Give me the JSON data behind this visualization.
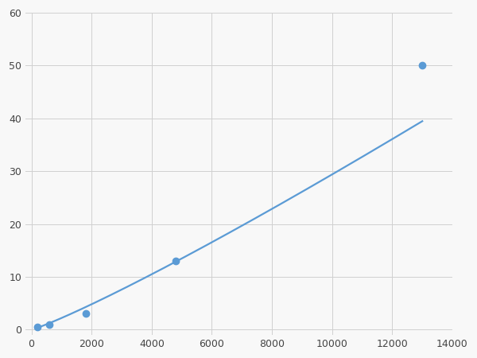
{
  "x_data": [
    200,
    600,
    1800,
    4800,
    13000
  ],
  "y_data": [
    0.5,
    1.0,
    3.0,
    13.0,
    50.0
  ],
  "line_color": "#5b9bd5",
  "marker_color": "#5b9bd5",
  "marker_size": 6,
  "line_width": 1.6,
  "xlim": [
    -200,
    14000
  ],
  "ylim": [
    -1,
    60
  ],
  "xticks": [
    0,
    2000,
    4000,
    6000,
    8000,
    10000,
    12000,
    14000
  ],
  "yticks": [
    0,
    10,
    20,
    30,
    40,
    50,
    60
  ],
  "xtick_labels": [
    "0",
    "2000",
    "4000",
    "6000",
    "8000",
    "10000",
    "12000",
    "14000"
  ],
  "ytick_labels": [
    "0",
    "10",
    "20",
    "30",
    "40",
    "50",
    "60"
  ],
  "grid_color": "#d0d0d0",
  "grid_linewidth": 0.7,
  "background_color": "#f8f8f8",
  "figure_background": "#f8f8f8"
}
